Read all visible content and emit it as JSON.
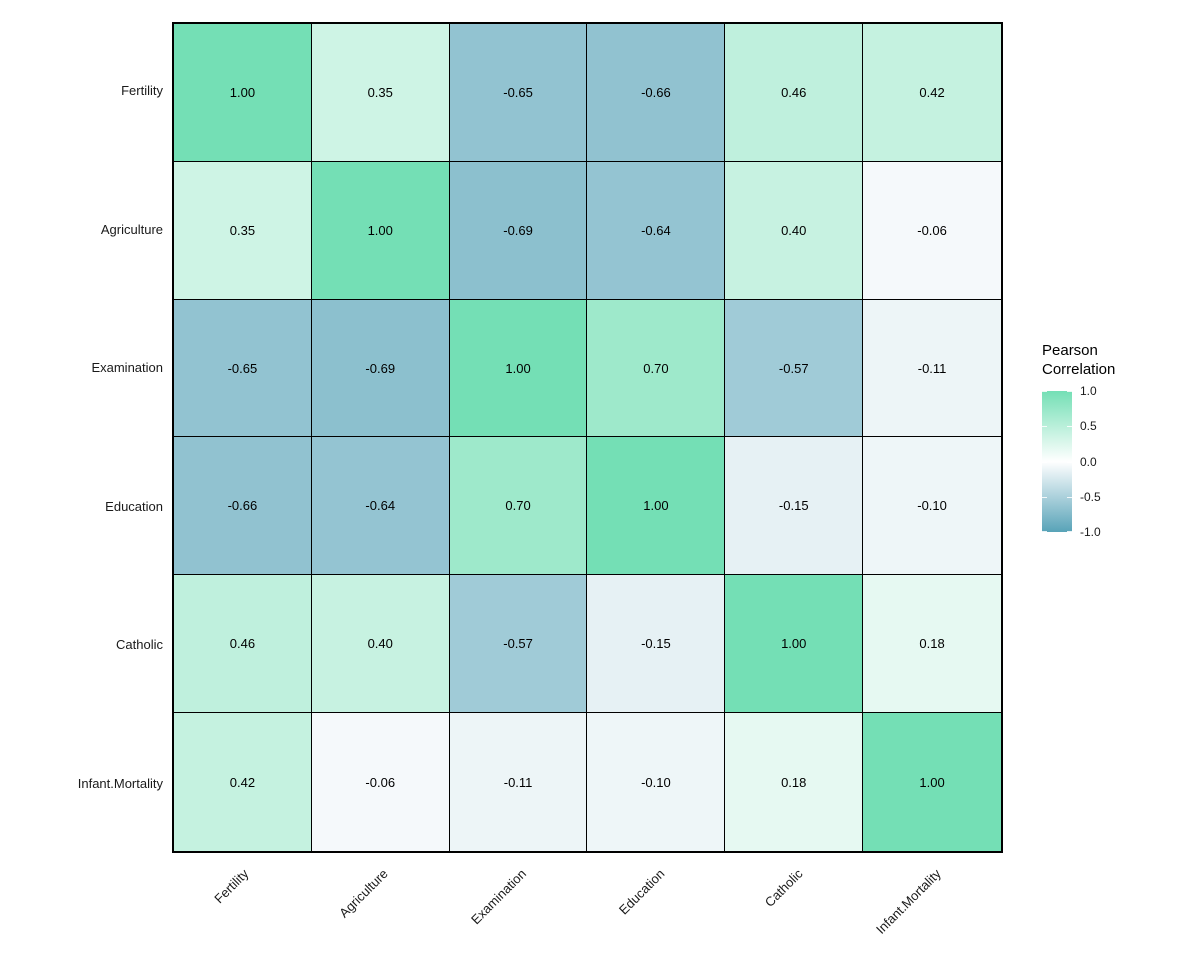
{
  "page": {
    "background": "#FFFFFF"
  },
  "chart_data": {
    "type": "heatmap",
    "title": "",
    "variables": [
      "Fertility",
      "Agriculture",
      "Examination",
      "Education",
      "Catholic",
      "Infant.Mortality"
    ],
    "matrix": [
      [
        1.0,
        0.35,
        -0.65,
        -0.66,
        0.46,
        0.42
      ],
      [
        0.35,
        1.0,
        -0.69,
        -0.64,
        0.4,
        -0.06
      ],
      [
        -0.65,
        -0.69,
        1.0,
        0.7,
        -0.57,
        -0.11
      ],
      [
        -0.66,
        -0.64,
        0.7,
        1.0,
        -0.15,
        -0.1
      ],
      [
        0.46,
        0.4,
        -0.57,
        -0.15,
        1.0,
        0.18
      ],
      [
        0.42,
        -0.06,
        -0.11,
        -0.1,
        0.18,
        1.0
      ]
    ],
    "value_format_decimals": 2,
    "legend": {
      "title_line1": "Pearson",
      "title_line2": "Correlation",
      "tick_labels": [
        "1.0",
        "0.5",
        "0.0",
        "-0.5",
        "-1.0"
      ],
      "range": [
        -1.0,
        1.0
      ],
      "position": "right"
    },
    "colors": {
      "high": "#74DFB5",
      "mid": "#FFFFFF",
      "low": "#58A3B8",
      "cell_border": "#000000",
      "panel_border": "#000000",
      "value_text": "#000000",
      "axis_text": "#1A1A1A"
    },
    "layout": {
      "x_label_angle": 45,
      "grid": "none",
      "cell_labels": true
    }
  }
}
